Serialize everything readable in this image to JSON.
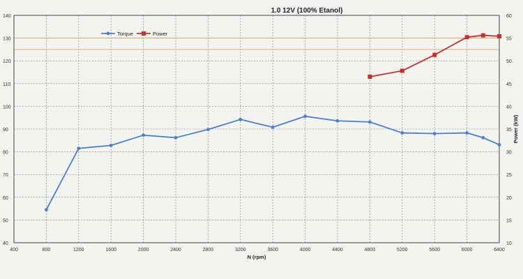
{
  "chart_data": {
    "type": "line",
    "title": "1.0 12V (100% Etanol)",
    "xlabel": "N (rpm)",
    "ylabel_left": "",
    "ylabel_right": "Power (kW)",
    "xlim": [
      400,
      6400
    ],
    "x_ticks": [
      400,
      800,
      1200,
      1600,
      2000,
      2400,
      2800,
      3200,
      3600,
      4000,
      4400,
      4800,
      5200,
      5600,
      6000,
      6400
    ],
    "ylim_left": [
      40,
      140
    ],
    "y_ticks_left": [
      40,
      50,
      60,
      70,
      80,
      90,
      100,
      110,
      120,
      130,
      140
    ],
    "ylim_right": [
      10,
      60
    ],
    "y_ticks_right": [
      10,
      15,
      20,
      25,
      30,
      35,
      40,
      45,
      50,
      55,
      60
    ],
    "grid": true,
    "legend_position": "top-left",
    "series": [
      {
        "name": "Torque",
        "axis": "left",
        "color": "#4a7fd0",
        "x": [
          800,
          1200,
          1600,
          2000,
          2400,
          2800,
          3200,
          3600,
          4000,
          4400,
          4800,
          5200,
          5600,
          6000,
          6200,
          6400
        ],
        "y": [
          54.5,
          81.5,
          82.8,
          87.3,
          86.2,
          89.8,
          94.2,
          90.8,
          95.6,
          93.6,
          93.1,
          88.3,
          88.0,
          88.3,
          86.2,
          83.1
        ]
      },
      {
        "name": "Power",
        "axis": "right",
        "color": "#c8312b",
        "x": [
          4800,
          5200,
          5600,
          6000,
          6200,
          6400
        ],
        "y": [
          46.5,
          47.8,
          51.3,
          55.2,
          55.6,
          55.4
        ]
      }
    ]
  }
}
